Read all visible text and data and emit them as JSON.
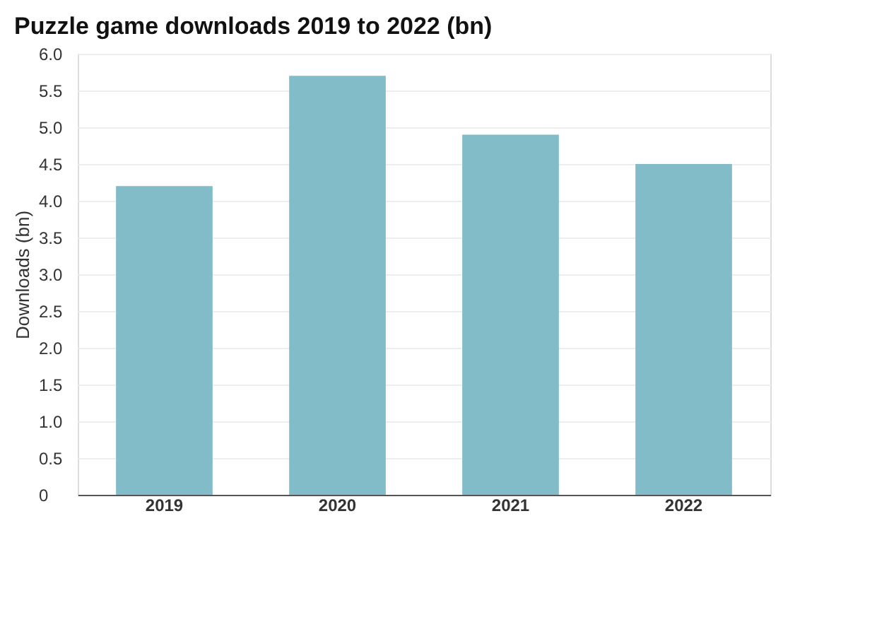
{
  "chart_data": {
    "type": "bar",
    "title": "Puzzle game downloads 2019 to 2022 (bn)",
    "ylabel": "Downloads (bn)",
    "categories": [
      "2019",
      "2020",
      "2021",
      "2022"
    ],
    "values": [
      4.2,
      5.7,
      4.9,
      4.5
    ],
    "color": "#82bcc8",
    "ylim": [
      0,
      6
    ],
    "yticks": [
      0,
      {
        "value": 0.5,
        "label": "0.5"
      },
      {
        "value": 1,
        "label": "1.0"
      },
      {
        "value": 1.5,
        "label": "1.5"
      },
      {
        "value": 2,
        "label": "2.0"
      },
      {
        "value": 2.5,
        "label": "2.5"
      },
      {
        "value": 3,
        "label": "3.0"
      },
      {
        "value": 3.5,
        "label": "3.5"
      },
      {
        "value": 4,
        "label": "4.0"
      },
      {
        "value": 4.5,
        "label": "4.5"
      },
      {
        "value": 5,
        "label": "5.0"
      },
      {
        "value": 5.5,
        "label": "5.5"
      },
      {
        "value": 6,
        "label": "6.0"
      }
    ],
    "grid": "y"
  }
}
